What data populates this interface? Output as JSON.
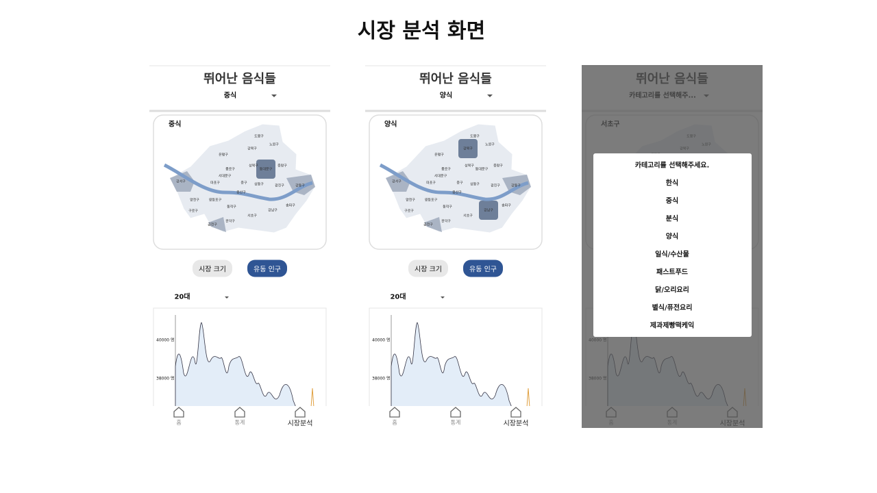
{
  "title": "시장 분석 화면",
  "screens": [
    {
      "header": "뛰어난 음식들",
      "dropdown": "중식",
      "map_title": "중식",
      "toggle": [
        "시장 크기",
        "유동 인구"
      ],
      "age": "20대",
      "chart_yticks": [
        "40000 명",
        "38000 명"
      ],
      "nav": [
        "홈",
        "통계",
        "시장분석"
      ]
    },
    {
      "header": "뛰어난 음식들",
      "dropdown": "양식",
      "map_title": "양식",
      "toggle": [
        "시장 크기",
        "유동 인구"
      ],
      "age": "20대",
      "chart_yticks": [
        "40000 명",
        "38000 명"
      ],
      "nav": [
        "홈",
        "통계",
        "시장분석"
      ]
    },
    {
      "header": "뛰어난 음식들",
      "dropdown": "카테고리를 선택해주...",
      "map_title": "서초구",
      "chart_yticks": [
        "40000 명",
        "38000 명"
      ],
      "nav": [
        "홈",
        "통계",
        "시장분석"
      ],
      "modal": {
        "title": "카테고리를 선택해주세요.",
        "options": [
          "한식",
          "중식",
          "분식",
          "양식",
          "일식/수산물",
          "패스트푸드",
          "닭/오리요리",
          "별식/퓨전요리",
          "제과제빵떡케익"
        ]
      }
    }
  ],
  "districts": [
    "도봉구",
    "노원구",
    "강북구",
    "은평구",
    "성북구",
    "종로구",
    "동대문구",
    "중랑구",
    "서대문구",
    "중구",
    "마포구",
    "성동구",
    "광진구",
    "강서구",
    "용산구",
    "강동구",
    "양천구",
    "영등포구",
    "동작구",
    "구로구",
    "서초구",
    "강남구",
    "송파구",
    "금천구",
    "관악구"
  ]
}
